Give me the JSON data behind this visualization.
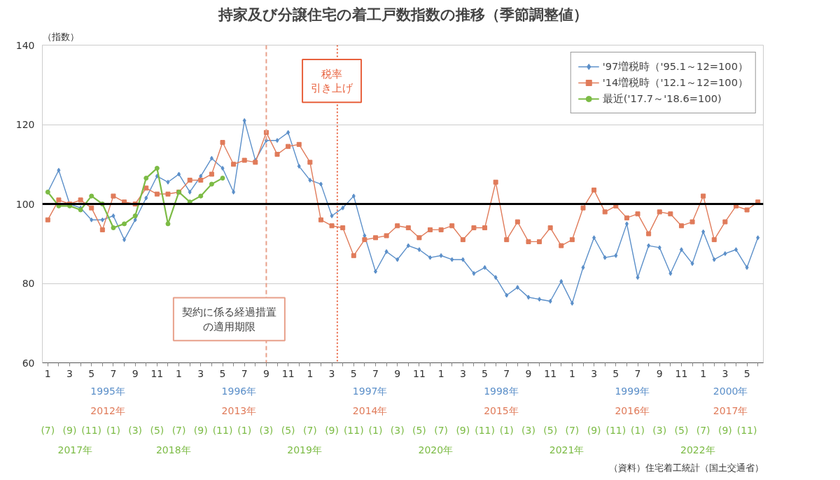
{
  "chart_data": {
    "type": "line",
    "title": "持家及び分譲住宅の着工戸数指数の推移（季節調整値）",
    "ylabel": "（指数）",
    "categories": [
      "1",
      null,
      "3",
      null,
      "5",
      null,
      "7",
      null,
      "9",
      null,
      "11",
      null,
      "1",
      null,
      "3",
      null,
      "5",
      null,
      "7",
      null,
      "9",
      null,
      "11",
      null,
      "1",
      null,
      "3",
      null,
      "5",
      null,
      "7",
      null,
      "9",
      null,
      "11",
      null,
      "1",
      null,
      "3",
      null,
      "5",
      null,
      "7",
      null,
      "9",
      null,
      "11",
      null,
      "1",
      null,
      "3",
      null,
      "5",
      null,
      "7",
      null,
      "9",
      null,
      "11",
      null,
      "1",
      null,
      "3",
      null,
      "5",
      null
    ],
    "ylim": [
      60,
      140
    ],
    "yticks": [
      60,
      80,
      100,
      120,
      140
    ],
    "grid": "y",
    "legend": "top right",
    "series": [
      {
        "name": "'97増税時（'95.1～12=100）",
        "color": "#5b8fc9",
        "marker": "diamond",
        "values": [
          103,
          108.5,
          100,
          99,
          96,
          96,
          97,
          91,
          96,
          101.5,
          107,
          105.5,
          107.5,
          103,
          107,
          111.5,
          109,
          103,
          121,
          111,
          116,
          116,
          118,
          109.5,
          106,
          105,
          97,
          99,
          102,
          92,
          83,
          88,
          86,
          89.5,
          88.5,
          86.5,
          87,
          86,
          86,
          82.5,
          84,
          81.5,
          77,
          79,
          76.5,
          76,
          75.5,
          80.5,
          75,
          84,
          91.5,
          86.5,
          87,
          95,
          81.5,
          89.5,
          89,
          82.5,
          88.5,
          85,
          93,
          86,
          87.5,
          88.5,
          84,
          91.5
        ]
      },
      {
        "name": "'14増税時（'12.1～12=100）",
        "color": "#e07b5a",
        "marker": "square",
        "values": [
          96,
          101,
          100,
          101,
          99,
          93.5,
          102,
          100.5,
          100,
          104,
          102.5,
          102.5,
          103,
          106,
          106,
          107.5,
          115.5,
          110,
          111,
          110.5,
          118,
          112.5,
          114.5,
          115,
          110.5,
          96,
          94.5,
          94,
          87,
          91,
          91.5,
          92,
          94.5,
          94,
          91.5,
          93.5,
          93.5,
          94.5,
          91,
          94,
          94,
          105.5,
          91,
          95.5,
          90.5,
          90.5,
          94,
          89.5,
          91,
          99,
          103.5,
          98,
          99.5,
          96.5,
          97.5,
          92.5,
          98,
          97.5,
          94.5,
          95.5,
          102,
          91,
          95.5,
          99.5,
          98.5,
          100.5
        ]
      },
      {
        "name": "最近('17.7～'18.6=100)",
        "color": "#7cbb45",
        "marker": "circle",
        "values": [
          103,
          99.5,
          99.5,
          98.5,
          102,
          100,
          94,
          95,
          97,
          106.5,
          109,
          95,
          103,
          100.5,
          102,
          105,
          106.5,
          null,
          null,
          null,
          null,
          null,
          null,
          null,
          null,
          null,
          null,
          null,
          null,
          null,
          null,
          null,
          null,
          null,
          null,
          null,
          null,
          null,
          null,
          null,
          null,
          null,
          null,
          null,
          null,
          null,
          null,
          null,
          null,
          null,
          null,
          null,
          null,
          null,
          null,
          null,
          null,
          null,
          null,
          null,
          null,
          null,
          null,
          null,
          null,
          null
        ]
      }
    ],
    "ref_lines": [
      {
        "axis": "y",
        "value": 100,
        "color": "#000000",
        "line_style": "solid"
      }
    ],
    "annotations": [
      "1995年",
      "1996年",
      "1997年",
      "1998年",
      "1999年",
      "2000年",
      "2012年",
      "2013年",
      "2014年",
      "2015年",
      "2016年",
      "2017年",
      "(7)",
      "(9)",
      "(11)",
      "(1)",
      "(3)",
      "(5)",
      "(7)",
      "(9)",
      "(11)",
      "(1)",
      "(3)",
      "(5)",
      "(7)",
      "(9)",
      "(11)",
      "(1)",
      "(3)",
      "(5)",
      "(7)",
      "(9)",
      "(11)",
      "(1)",
      "(3)",
      "(5)",
      "(7)",
      "(9)",
      "(11)",
      "(1)",
      "(3)",
      "(5)",
      "(7)",
      "(9)",
      "(11)",
      "2017年",
      "2018年",
      "2019年",
      "2020年",
      "2021年",
      "2022年",
      "契約に係る経過措置の適用期限",
      "税率引き上げ",
      "（資料）住宅着工統計（国土交通省）"
    ]
  }
}
